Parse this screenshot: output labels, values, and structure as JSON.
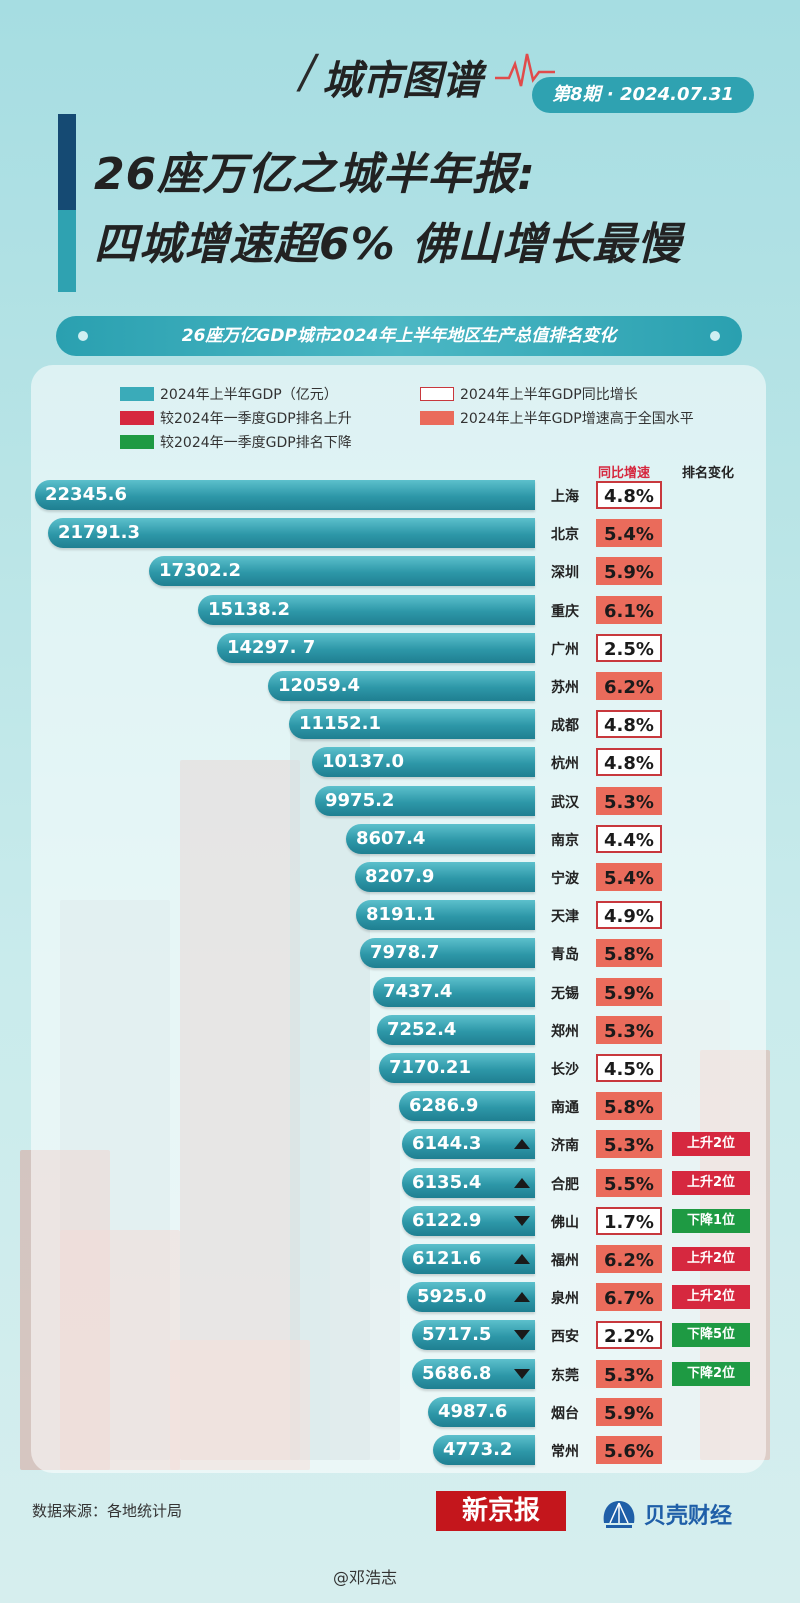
{
  "header": {
    "brand": "城市图谱",
    "issue": "第8期 · 2024.07.31",
    "title_line1": "26座万亿之城半年报:",
    "title_line2": "四城增速超6% 佛山增长最慢"
  },
  "subtitle": "26座万亿GDP城市2024年上半年地区生产总值排名变化",
  "colors": {
    "bar": "#2d97a8",
    "rank_up": "#d6283f",
    "rank_down": "#1e9a43",
    "above_national": "#ea6b5b",
    "growth_border": "#c8383d"
  },
  "legend": [
    {
      "label": "2024年上半年GDP（亿元）",
      "color": "#3aabb9",
      "style": "fill"
    },
    {
      "label": "2024年上半年GDP同比增长",
      "color": "#c8383d",
      "style": "outline"
    },
    {
      "label": "较2024年一季度GDP排名上升",
      "color": "#d6283f",
      "style": "fill"
    },
    {
      "label": "2024年上半年GDP增速高于全国水平",
      "color": "#ea6b5b",
      "style": "fill"
    },
    {
      "label": "较2024年一季度GDP排名下降",
      "color": "#1e9a43",
      "style": "fill"
    }
  ],
  "columns": {
    "growth": "同比增速",
    "rank_change": "排名变化"
  },
  "chart_data": {
    "type": "bar",
    "orientation": "horizontal",
    "title": "26座万亿GDP城市2024年上半年地区生产总值排名变化",
    "unit": "亿元",
    "rows": [
      {
        "city": "上海",
        "gdp": 22345.6,
        "gdp_label": "22345.6",
        "growth": "4.8%",
        "above_national": false,
        "rank_change": "",
        "arrow": ""
      },
      {
        "city": "北京",
        "gdp": 21791.3,
        "gdp_label": "21791.3",
        "growth": "5.4%",
        "above_national": true,
        "rank_change": "",
        "arrow": ""
      },
      {
        "city": "深圳",
        "gdp": 17302.2,
        "gdp_label": "17302.2",
        "growth": "5.9%",
        "above_national": true,
        "rank_change": "",
        "arrow": ""
      },
      {
        "city": "重庆",
        "gdp": 15138.2,
        "gdp_label": "15138.2",
        "growth": "6.1%",
        "above_national": true,
        "rank_change": "",
        "arrow": ""
      },
      {
        "city": "广州",
        "gdp": 14297.7,
        "gdp_label": "14297. 7",
        "growth": "2.5%",
        "above_national": false,
        "rank_change": "",
        "arrow": ""
      },
      {
        "city": "苏州",
        "gdp": 12059.4,
        "gdp_label": "12059.4",
        "growth": "6.2%",
        "above_national": true,
        "rank_change": "",
        "arrow": ""
      },
      {
        "city": "成都",
        "gdp": 11152.1,
        "gdp_label": "11152.1",
        "growth": "4.8%",
        "above_national": false,
        "rank_change": "",
        "arrow": ""
      },
      {
        "city": "杭州",
        "gdp": 10137.0,
        "gdp_label": "10137.0",
        "growth": "4.8%",
        "above_national": false,
        "rank_change": "",
        "arrow": ""
      },
      {
        "city": "武汉",
        "gdp": 9975.2,
        "gdp_label": "9975.2",
        "growth": "5.3%",
        "above_national": true,
        "rank_change": "",
        "arrow": ""
      },
      {
        "city": "南京",
        "gdp": 8607.4,
        "gdp_label": "8607.4",
        "growth": "4.4%",
        "above_national": false,
        "rank_change": "",
        "arrow": ""
      },
      {
        "city": "宁波",
        "gdp": 8207.9,
        "gdp_label": "8207.9",
        "growth": "5.4%",
        "above_national": true,
        "rank_change": "",
        "arrow": ""
      },
      {
        "city": "天津",
        "gdp": 8191.1,
        "gdp_label": "8191.1",
        "growth": "4.9%",
        "above_national": false,
        "rank_change": "",
        "arrow": ""
      },
      {
        "city": "青岛",
        "gdp": 7978.7,
        "gdp_label": "7978.7",
        "growth": "5.8%",
        "above_national": true,
        "rank_change": "",
        "arrow": ""
      },
      {
        "city": "无锡",
        "gdp": 7437.4,
        "gdp_label": "7437.4",
        "growth": "5.9%",
        "above_national": true,
        "rank_change": "",
        "arrow": ""
      },
      {
        "city": "郑州",
        "gdp": 7252.4,
        "gdp_label": "7252.4",
        "growth": "5.3%",
        "above_national": true,
        "rank_change": "",
        "arrow": ""
      },
      {
        "city": "长沙",
        "gdp": 7170.21,
        "gdp_label": "7170.21",
        "growth": "4.5%",
        "above_national": false,
        "rank_change": "",
        "arrow": ""
      },
      {
        "city": "南通",
        "gdp": 6286.9,
        "gdp_label": "6286.9",
        "growth": "5.8%",
        "above_national": true,
        "rank_change": "",
        "arrow": ""
      },
      {
        "city": "济南",
        "gdp": 6144.3,
        "gdp_label": "6144.3",
        "growth": "5.3%",
        "above_national": true,
        "rank_change": "上升2位",
        "arrow": "up"
      },
      {
        "city": "合肥",
        "gdp": 6135.4,
        "gdp_label": "6135.4",
        "growth": "5.5%",
        "above_national": true,
        "rank_change": "上升2位",
        "arrow": "up"
      },
      {
        "city": "佛山",
        "gdp": 6122.9,
        "gdp_label": "6122.9",
        "growth": "1.7%",
        "above_national": false,
        "rank_change": "下降1位",
        "arrow": "down"
      },
      {
        "city": "福州",
        "gdp": 6121.6,
        "gdp_label": "6121.6",
        "growth": "6.2%",
        "above_national": true,
        "rank_change": "上升2位",
        "arrow": "up"
      },
      {
        "city": "泉州",
        "gdp": 5925.0,
        "gdp_label": "5925.0",
        "growth": "6.7%",
        "above_national": true,
        "rank_change": "上升2位",
        "arrow": "up"
      },
      {
        "city": "西安",
        "gdp": 5717.5,
        "gdp_label": "5717.5",
        "growth": "2.2%",
        "above_national": false,
        "rank_change": "下降5位",
        "arrow": "down"
      },
      {
        "city": "东莞",
        "gdp": 5686.8,
        "gdp_label": "5686.8",
        "growth": "5.3%",
        "above_national": true,
        "rank_change": "下降2位",
        "arrow": "down"
      },
      {
        "city": "烟台",
        "gdp": 4987.6,
        "gdp_label": "4987.6",
        "growth": "5.9%",
        "above_national": true,
        "rank_change": "",
        "arrow": ""
      },
      {
        "city": "常州",
        "gdp": 4773.2,
        "gdp_label": "4773.2",
        "growth": "5.6%",
        "above_national": true,
        "rank_change": "",
        "arrow": ""
      }
    ]
  },
  "footer": {
    "source": "数据来源：各地统计局",
    "logo_xjb": "新京报",
    "logo_bk": "贝壳财经",
    "weibo": "@邓浩志"
  }
}
